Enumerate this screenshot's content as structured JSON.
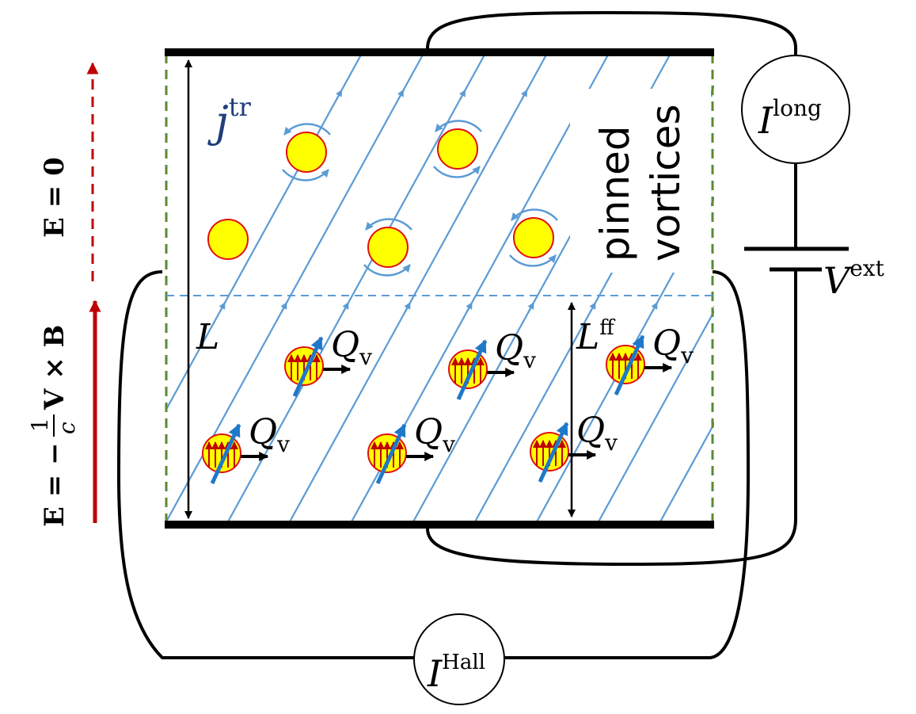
{
  "labels": {
    "j_tr": "j",
    "j_tr_sup": "tr",
    "pinned_line1": "pinned",
    "pinned_line2": "vortices",
    "I_long": "I",
    "I_long_sup": "long",
    "V_ext": "V",
    "V_ext_sup": "ext",
    "I_hall": "I",
    "I_hall_sup": "Hall",
    "L": "L",
    "L_ff": "L",
    "L_ff_sup": "ff",
    "Q_v": "Q",
    "Q_v_sub": "v",
    "E_zero": "E = 0",
    "E_flow": "E = −",
    "E_frac_num": "1",
    "E_frac_den": "c",
    "E_flow_tail": "V × B"
  },
  "colors": {
    "current": "#5b9bd5",
    "vortex_fill": "#ffff00",
    "vortex_edge": "#e01010",
    "moving_arrow": "#1f78c8",
    "field_arrow": "#c00000",
    "boundary": "#5a8a32",
    "label_blue": "#1f3f7a"
  }
}
